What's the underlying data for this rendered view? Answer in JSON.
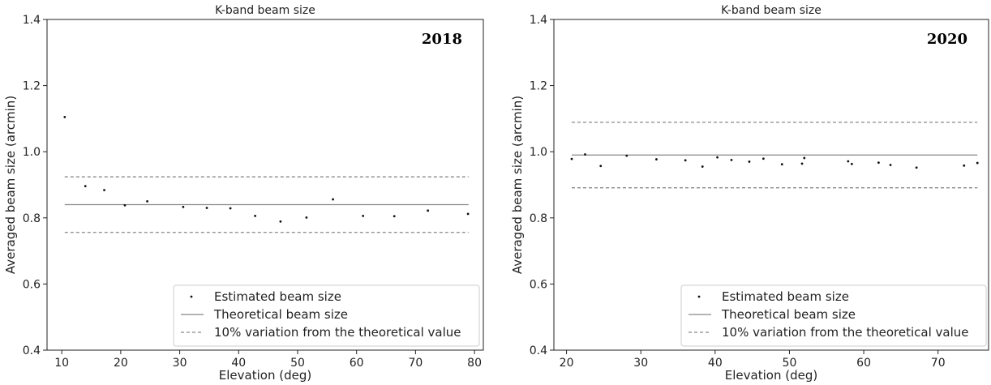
{
  "chart_data": [
    {
      "type": "scatter",
      "title": "K-band beam size",
      "annotation": "2018",
      "xlabel": "Elevation (deg)",
      "ylabel": "Averaged beam size (arcmin)",
      "xlim": [
        7.5,
        81.5
      ],
      "ylim": [
        0.4,
        1.4
      ],
      "xticks": [
        10,
        20,
        30,
        40,
        50,
        60,
        70,
        80
      ],
      "yticks": [
        0.4,
        0.6,
        0.8,
        1.0,
        1.2,
        1.4
      ],
      "ytick_labels": [
        "0.4",
        "0.6",
        "0.8",
        "1.0",
        "1.2",
        "1.4"
      ],
      "theoretical": 0.84,
      "band": [
        0.756,
        0.924
      ],
      "line_x_range": [
        10.5,
        79
      ],
      "points": [
        {
          "x": 10.5,
          "y": 1.105
        },
        {
          "x": 14,
          "y": 0.896
        },
        {
          "x": 17.2,
          "y": 0.884
        },
        {
          "x": 20.7,
          "y": 0.838
        },
        {
          "x": 24.5,
          "y": 0.85
        },
        {
          "x": 30.6,
          "y": 0.833
        },
        {
          "x": 34.6,
          "y": 0.83
        },
        {
          "x": 38.6,
          "y": 0.829
        },
        {
          "x": 42.8,
          "y": 0.806
        },
        {
          "x": 47.1,
          "y": 0.789
        },
        {
          "x": 51.5,
          "y": 0.801
        },
        {
          "x": 56,
          "y": 0.856
        },
        {
          "x": 61.1,
          "y": 0.806
        },
        {
          "x": 66.4,
          "y": 0.805
        },
        {
          "x": 72.1,
          "y": 0.822
        },
        {
          "x": 78.9,
          "y": 0.812
        }
      ],
      "legend": {
        "placement": "lower-right",
        "entries": [
          "Estimated beam size",
          "Theoretical beam size",
          "10% variation from the theoretical value"
        ]
      }
    },
    {
      "type": "scatter",
      "title": "K-band beam size",
      "annotation": "2020",
      "xlabel": "Elevation (deg)",
      "ylabel": "Averaged beam size (arcmin)",
      "xlim": [
        18.3,
        76.8
      ],
      "ylim": [
        0.4,
        1.4
      ],
      "xticks": [
        20,
        30,
        40,
        50,
        60,
        70
      ],
      "yticks": [
        0.4,
        0.6,
        0.8,
        1.0,
        1.2,
        1.4
      ],
      "ytick_labels": [
        "0.4",
        "0.6",
        "0.8",
        "1.0",
        "1.2",
        "1.4"
      ],
      "theoretical": 0.99,
      "band": [
        0.891,
        1.089
      ],
      "line_x_range": [
        20.7,
        75.3
      ],
      "points": [
        {
          "x": 20.7,
          "y": 0.978
        },
        {
          "x": 22.5,
          "y": 0.992
        },
        {
          "x": 24.6,
          "y": 0.957
        },
        {
          "x": 28.1,
          "y": 0.988
        },
        {
          "x": 32.1,
          "y": 0.977
        },
        {
          "x": 36,
          "y": 0.974
        },
        {
          "x": 38.3,
          "y": 0.955
        },
        {
          "x": 40.3,
          "y": 0.983
        },
        {
          "x": 42.2,
          "y": 0.975
        },
        {
          "x": 44.6,
          "y": 0.97
        },
        {
          "x": 46.5,
          "y": 0.979
        },
        {
          "x": 49,
          "y": 0.962
        },
        {
          "x": 51.7,
          "y": 0.964
        },
        {
          "x": 52,
          "y": 0.981
        },
        {
          "x": 57.9,
          "y": 0.971
        },
        {
          "x": 58.4,
          "y": 0.963
        },
        {
          "x": 62,
          "y": 0.967
        },
        {
          "x": 63.6,
          "y": 0.96
        },
        {
          "x": 67.1,
          "y": 0.952
        },
        {
          "x": 73.5,
          "y": 0.958
        },
        {
          "x": 75.3,
          "y": 0.966
        }
      ],
      "legend": {
        "placement": "lower-right",
        "entries": [
          "Estimated beam size",
          "Theoretical beam size",
          "10% variation from the theoretical value"
        ]
      }
    }
  ],
  "colors": {
    "points": "#111111",
    "theoretical_line": "#888888",
    "band_line": "#888888",
    "axes": "#222222"
  }
}
